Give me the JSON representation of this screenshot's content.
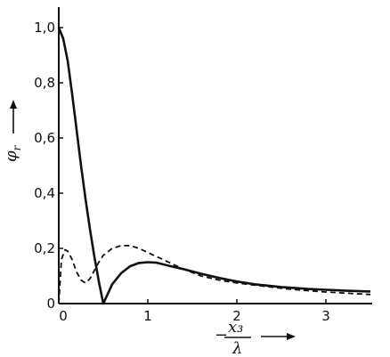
{
  "chart_data": {
    "type": "line",
    "xlabel_num": "x₃",
    "xlabel_prefix": "−",
    "xlabel_den": "λ",
    "ylabel": "φ",
    "ylabel_sub": "r",
    "xlim": [
      0,
      3.5
    ],
    "ylim": [
      0,
      1.05
    ],
    "x_ticks": [
      0,
      1,
      2,
      3
    ],
    "x_tick_labels": [
      "0",
      "1",
      "2",
      "3"
    ],
    "y_ticks": [
      0,
      0.2,
      0.4,
      0.6,
      0.8,
      1.0
    ],
    "y_tick_labels": [
      "0",
      "0,2",
      "0,4",
      "0,6",
      "0,8",
      "1,0"
    ],
    "grid": false,
    "series": [
      {
        "style": "solid",
        "x": [
          0,
          0.05,
          0.1,
          0.15,
          0.2,
          0.25,
          0.3,
          0.35,
          0.4,
          0.45,
          0.5,
          0.6,
          0.7,
          0.8,
          0.9,
          1.0,
          1.1,
          1.2,
          1.4,
          1.6,
          1.8,
          2.0,
          2.2,
          2.5,
          2.8,
          3.0,
          3.2,
          3.5
        ],
        "y": [
          1.0,
          0.96,
          0.88,
          0.76,
          0.63,
          0.5,
          0.38,
          0.27,
          0.17,
          0.08,
          0.0,
          0.07,
          0.11,
          0.135,
          0.147,
          0.15,
          0.148,
          0.14,
          0.125,
          0.108,
          0.093,
          0.08,
          0.07,
          0.06,
          0.053,
          0.05,
          0.047,
          0.044
        ]
      },
      {
        "style": "dashed",
        "x": [
          0,
          0.03,
          0.07,
          0.1,
          0.15,
          0.2,
          0.25,
          0.3,
          0.35,
          0.4,
          0.45,
          0.5,
          0.6,
          0.7,
          0.8,
          0.9,
          1.0,
          1.2,
          1.4,
          1.6,
          1.8,
          2.0,
          2.3,
          2.6,
          3.0,
          3.5
        ],
        "y": [
          0.0,
          0.16,
          0.195,
          0.19,
          0.16,
          0.115,
          0.085,
          0.075,
          0.09,
          0.12,
          0.15,
          0.175,
          0.2,
          0.21,
          0.21,
          0.2,
          0.185,
          0.155,
          0.125,
          0.1,
          0.085,
          0.075,
          0.063,
          0.052,
          0.042,
          0.033
        ]
      }
    ]
  }
}
